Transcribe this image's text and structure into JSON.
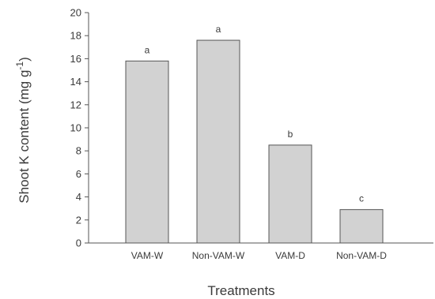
{
  "chart_data": {
    "type": "bar",
    "categories": [
      "VAM-W",
      "Non-VAM-W",
      "VAM-D",
      "Non-VAM-D"
    ],
    "values": [
      15.8,
      17.6,
      8.5,
      2.9
    ],
    "significance_letters": [
      "a",
      "a",
      "b",
      "c"
    ],
    "xlabel": "Treatments",
    "ylabel": {
      "main": "Shoot K content (mg g",
      "sup": "-1",
      "close": ")"
    },
    "ylim": [
      0,
      20
    ],
    "yticks": [
      "0",
      "2",
      "4",
      "6",
      "8",
      "10",
      "12",
      "14",
      "16",
      "18",
      "20"
    ],
    "grid": false,
    "bar_color": "#d2d2d2",
    "bar_stroke": "#555555",
    "axis_color": "#555555"
  }
}
